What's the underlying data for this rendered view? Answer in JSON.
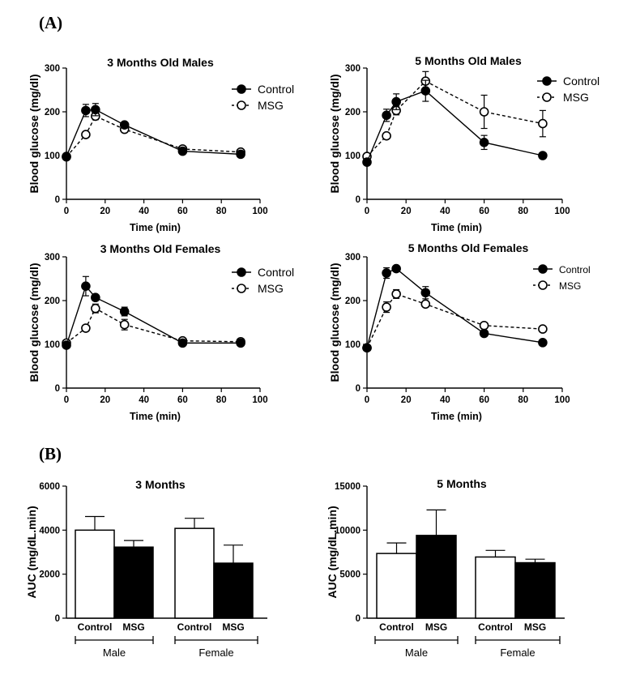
{
  "panel_labels": {
    "a": "(A)",
    "b": "(B)"
  },
  "chart_data": [
    {
      "type": "line",
      "title": "3 Months Old Males",
      "xlabel": "Time (min)",
      "ylabel": "Blood glucose (mg/dl)",
      "xlim": [
        0,
        100
      ],
      "ylim": [
        0,
        300
      ],
      "xticks": [
        0,
        20,
        40,
        60,
        80,
        100
      ],
      "yticks": [
        0,
        100,
        200,
        300
      ],
      "legend_position": "top-right",
      "series": [
        {
          "name": "Control",
          "style": "solid-filled",
          "x": [
            0,
            10,
            15,
            30,
            60,
            90
          ],
          "y": [
            98,
            203,
            205,
            170,
            110,
            103
          ],
          "err": [
            4,
            14,
            14,
            6,
            4,
            4
          ]
        },
        {
          "name": "MSG",
          "style": "dashed-open",
          "x": [
            0,
            10,
            15,
            30,
            60,
            90
          ],
          "y": [
            97,
            148,
            190,
            160,
            115,
            108
          ],
          "err": [
            4,
            5,
            8,
            6,
            4,
            4
          ]
        }
      ]
    },
    {
      "type": "line",
      "title": "5 Months Old Males",
      "xlabel": "Time (min)",
      "ylabel": "Blood glucose (mg/dl)",
      "xlim": [
        0,
        100
      ],
      "ylim": [
        0,
        300
      ],
      "xticks": [
        0,
        20,
        40,
        60,
        80,
        100
      ],
      "yticks": [
        0,
        100,
        200,
        300
      ],
      "legend_position": "top-right",
      "series": [
        {
          "name": "Control",
          "style": "solid-filled",
          "x": [
            0,
            10,
            15,
            30,
            60,
            90
          ],
          "y": [
            85,
            192,
            223,
            248,
            130,
            100
          ],
          "err": [
            4,
            14,
            18,
            24,
            16,
            4
          ]
        },
        {
          "name": "MSG",
          "style": "dashed-open",
          "x": [
            0,
            10,
            15,
            30,
            60,
            90
          ],
          "y": [
            98,
            145,
            203,
            270,
            200,
            173
          ],
          "err": [
            4,
            6,
            10,
            22,
            38,
            30
          ]
        }
      ]
    },
    {
      "type": "line",
      "title": "3 Months Old Females",
      "xlabel": "Time (min)",
      "ylabel": "Blood glucose (mg/dl)",
      "xlim": [
        0,
        100
      ],
      "ylim": [
        0,
        300
      ],
      "xticks": [
        0,
        20,
        40,
        60,
        80,
        100
      ],
      "yticks": [
        0,
        100,
        200,
        300
      ],
      "legend_position": "top-right",
      "series": [
        {
          "name": "Control",
          "style": "solid-filled",
          "x": [
            0,
            10,
            15,
            30,
            60,
            90
          ],
          "y": [
            98,
            233,
            207,
            175,
            103,
            103
          ],
          "err": [
            4,
            22,
            6,
            10,
            4,
            4
          ]
        },
        {
          "name": "MSG",
          "style": "dashed-open",
          "x": [
            0,
            10,
            15,
            30,
            60,
            90
          ],
          "y": [
            103,
            137,
            182,
            145,
            108,
            106
          ],
          "err": [
            4,
            6,
            10,
            12,
            4,
            4
          ]
        }
      ]
    },
    {
      "type": "line",
      "title": "5 Months Old Females",
      "xlabel": "Time (min)",
      "ylabel": "Blood glucose (mg/dl)",
      "xlim": [
        0,
        100
      ],
      "ylim": [
        0,
        300
      ],
      "xticks": [
        0,
        20,
        40,
        60,
        80,
        100
      ],
      "yticks": [
        0,
        100,
        200,
        300
      ],
      "legend_position": "top-right",
      "series": [
        {
          "name": "Control",
          "style": "solid-filled",
          "x": [
            0,
            10,
            15,
            30,
            60,
            90
          ],
          "y": [
            92,
            263,
            273,
            218,
            125,
            104
          ],
          "err": [
            4,
            12,
            4,
            14,
            4,
            4
          ]
        },
        {
          "name": "MSG",
          "style": "dashed-open",
          "x": [
            0,
            10,
            15,
            30,
            60,
            90
          ],
          "y": [
            92,
            185,
            215,
            192,
            143,
            135
          ],
          "err": [
            4,
            12,
            10,
            6,
            4,
            4
          ]
        }
      ]
    },
    {
      "type": "bar",
      "title": "3 Months",
      "ylabel": "AUC (mg/dL.min)",
      "ylim": [
        0,
        6000
      ],
      "yticks": [
        0,
        2000,
        4000,
        6000
      ],
      "groups": [
        "Male",
        "Female"
      ],
      "categories": [
        "Control",
        "MSG",
        "Control",
        "MSG"
      ],
      "values": [
        4000,
        3230,
        4080,
        2500
      ],
      "err": [
        620,
        300,
        460,
        820
      ],
      "fills": [
        "#ffffff",
        "#000000",
        "#ffffff",
        "#000000"
      ]
    },
    {
      "type": "bar",
      "title": "5 Months",
      "ylabel": "AUC (mg/dL.min)",
      "ylim": [
        0,
        15000
      ],
      "yticks": [
        0,
        5000,
        10000,
        15000
      ],
      "groups": [
        "Male",
        "Female"
      ],
      "categories": [
        "Control",
        "MSG",
        "Control",
        "MSG"
      ],
      "values": [
        7350,
        9400,
        6950,
        6300
      ],
      "err": [
        1200,
        2900,
        750,
        400
      ],
      "fills": [
        "#ffffff",
        "#000000",
        "#ffffff",
        "#000000"
      ]
    }
  ]
}
